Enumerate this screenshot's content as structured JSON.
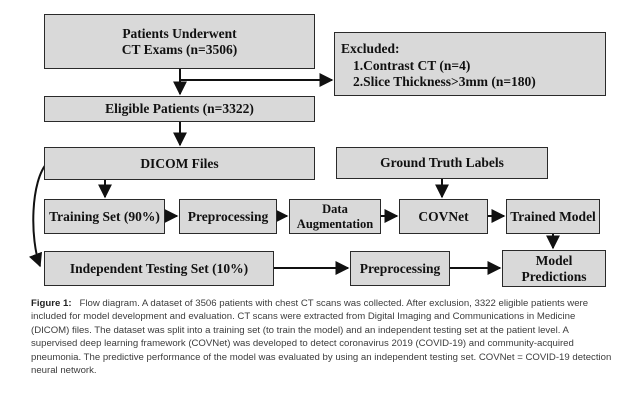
{
  "flow": {
    "patients": {
      "line1": "Patients Underwent",
      "line2": "CT Exams (n=3506)"
    },
    "excluded": {
      "title": "Excluded:",
      "items": [
        "1.Contrast CT (n=4)",
        "2.Slice Thickness>3mm (n=180)"
      ]
    },
    "eligible": "Eligible Patients (n=3322)",
    "dicom": "DICOM Files",
    "ground_truth": "Ground Truth Labels",
    "training_set": "Training Set (90%)",
    "preprocessing_train": "Preprocessing",
    "augmentation": {
      "line1": "Data",
      "line2": "Augmentation"
    },
    "covnet": "COVNet",
    "trained_model": "Trained Model",
    "testing_set": "Independent Testing Set (10%)",
    "preprocessing_test": "Preprocessing",
    "predictions": {
      "line1": "Model",
      "line2": "Predictions"
    }
  },
  "caption": {
    "label": "Figure 1:",
    "text": "Flow diagram. A dataset of 3506 patients with chest CT scans was collected. After exclusion, 3322 eligible patients were included for model development and evaluation. CT scans were extracted from Digital Imaging and Communications in Medicine (DICOM) files. The dataset was split into a training set (to train the model) and an independent testing set at the patient level. A supervised deep learning framework (COVNet) was developed to detect coronavirus 2019 (COVID-19) and community-acquired pneumonia. The predictive performance of the model was evaluated by using an independent testing set. COVNet = COVID-19 detection neural network."
  },
  "colors": {
    "box_fill": "#d9d9d9",
    "border": "#2a2a2a",
    "arrow": "#111111",
    "caption_text": "#3c3c3c"
  }
}
